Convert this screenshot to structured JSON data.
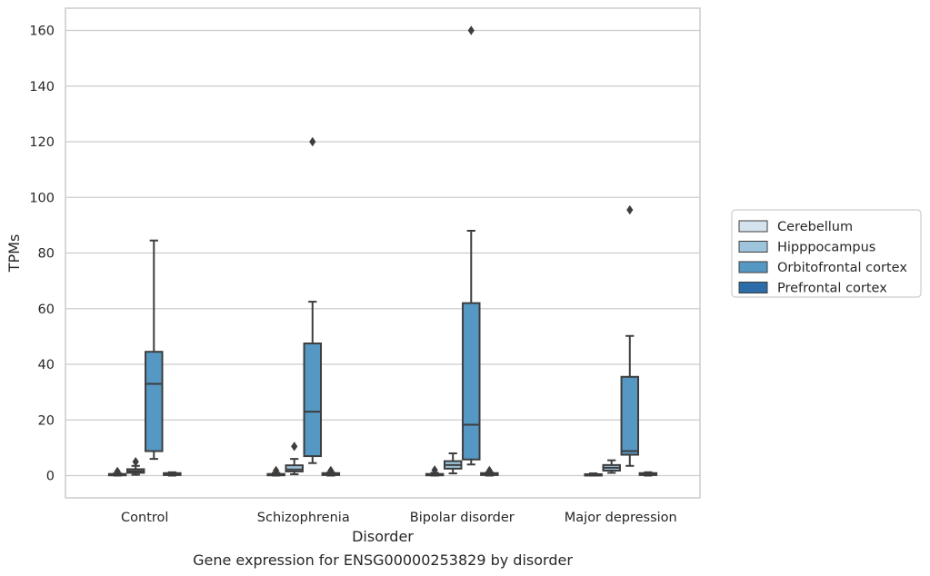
{
  "chart_data": {
    "type": "box",
    "xlabel": "Disorder",
    "ylabel": "TPMs",
    "caption": "Gene expression for ENSG00000253829 by disorder",
    "ylim": [
      -8,
      168
    ],
    "yticks": [
      0,
      20,
      40,
      60,
      80,
      100,
      120,
      140,
      160
    ],
    "grid": "horizontal",
    "legend_position": "right",
    "categories": [
      "Control",
      "Schizophrenia",
      "Bipolar disorder",
      "Major depression"
    ],
    "series": [
      {
        "name": "Cerebellum",
        "color": "#d5e3ee",
        "boxes": [
          {
            "q1": 0.1,
            "median": 0.3,
            "q3": 0.6,
            "whisker_low": 0.0,
            "whisker_high": 0.9,
            "outliers": [
              1.5
            ]
          },
          {
            "q1": 0.1,
            "median": 0.3,
            "q3": 0.6,
            "whisker_low": 0.0,
            "whisker_high": 1.0,
            "outliers": [
              1.8
            ]
          },
          {
            "q1": 0.1,
            "median": 0.3,
            "q3": 0.6,
            "whisker_low": 0.0,
            "whisker_high": 1.0,
            "outliers": [
              2.0
            ]
          },
          {
            "q1": 0.1,
            "median": 0.3,
            "q3": 0.5,
            "whisker_low": 0.0,
            "whisker_high": 0.8,
            "outliers": []
          }
        ]
      },
      {
        "name": "Hipppocampus",
        "color": "#9ec3dc",
        "boxes": [
          {
            "q1": 1.0,
            "median": 1.6,
            "q3": 2.3,
            "whisker_low": 0.3,
            "whisker_high": 3.5,
            "outliers": [
              5.0
            ]
          },
          {
            "q1": 1.5,
            "median": 2.2,
            "q3": 3.7,
            "whisker_low": 0.5,
            "whisker_high": 6.0,
            "outliers": [
              10.5
            ]
          },
          {
            "q1": 2.5,
            "median": 3.8,
            "q3": 5.2,
            "whisker_low": 0.8,
            "whisker_high": 8.0,
            "outliers": []
          },
          {
            "q1": 1.8,
            "median": 2.8,
            "q3": 3.8,
            "whisker_low": 1.0,
            "whisker_high": 5.5,
            "outliers": []
          }
        ]
      },
      {
        "name": "Orbitofrontal cortex",
        "color": "#5698c4",
        "boxes": [
          {
            "q1": 8.8,
            "median": 33.0,
            "q3": 44.5,
            "whisker_low": 6.0,
            "whisker_high": 84.5,
            "outliers": []
          },
          {
            "q1": 7.0,
            "median": 23.0,
            "q3": 47.5,
            "whisker_low": 4.5,
            "whisker_high": 62.5,
            "outliers": [
              120.0
            ]
          },
          {
            "q1": 5.8,
            "median": 18.3,
            "q3": 62.0,
            "whisker_low": 4.0,
            "whisker_high": 88.0,
            "outliers": [
              160.0
            ]
          },
          {
            "q1": 7.5,
            "median": 8.8,
            "q3": 35.5,
            "whisker_low": 3.5,
            "whisker_high": 50.2,
            "outliers": [
              95.5
            ]
          }
        ]
      },
      {
        "name": "Prefrontal cortex",
        "color": "#2c6ca8",
        "boxes": [
          {
            "q1": 0.2,
            "median": 0.5,
            "q3": 0.9,
            "whisker_low": 0.0,
            "whisker_high": 1.2,
            "outliers": []
          },
          {
            "q1": 0.2,
            "median": 0.5,
            "q3": 0.9,
            "whisker_low": 0.0,
            "whisker_high": 1.2,
            "outliers": [
              1.8
            ]
          },
          {
            "q1": 0.2,
            "median": 0.5,
            "q3": 0.9,
            "whisker_low": 0.0,
            "whisker_high": 1.2,
            "outliers": [
              1.8
            ]
          },
          {
            "q1": 0.2,
            "median": 0.5,
            "q3": 0.9,
            "whisker_low": 0.0,
            "whisker_high": 1.2,
            "outliers": []
          }
        ]
      }
    ]
  }
}
